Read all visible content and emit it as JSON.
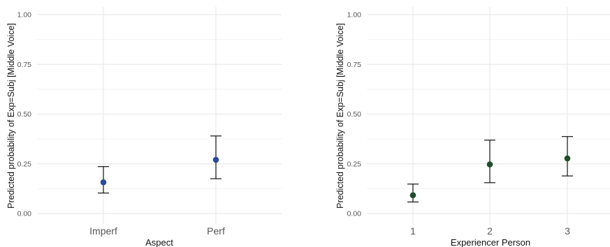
{
  "chart_data": [
    {
      "type": "scatter",
      "subtype": "point-with-error-bars",
      "xlabel": "Aspect",
      "ylabel": "Predicted probability of Exp=Subj [Middle Voice]",
      "categories": [
        "Imperf",
        "Perf"
      ],
      "values": [
        0.157,
        0.27
      ],
      "lower": [
        0.103,
        0.175
      ],
      "upper": [
        0.236,
        0.39
      ],
      "ylim": [
        0,
        1
      ],
      "yticks": [
        "0.00",
        "0.25",
        "0.50",
        "0.75",
        "1.00"
      ],
      "grid": true,
      "color": "#2b4a9c"
    },
    {
      "type": "scatter",
      "subtype": "point-with-error-bars",
      "xlabel": "Experiencer Person",
      "ylabel": "Predicted probability of Exp=Subj [Middle Voice]",
      "categories": [
        "1",
        "2",
        "3"
      ],
      "values": [
        0.092,
        0.247,
        0.277
      ],
      "lower": [
        0.058,
        0.155,
        0.189
      ],
      "upper": [
        0.148,
        0.369,
        0.387
      ],
      "ylim": [
        0,
        1
      ],
      "yticks": [
        "0.00",
        "0.25",
        "0.50",
        "0.75",
        "1.00"
      ],
      "grid": true,
      "color": "#1f4d2a"
    }
  ]
}
